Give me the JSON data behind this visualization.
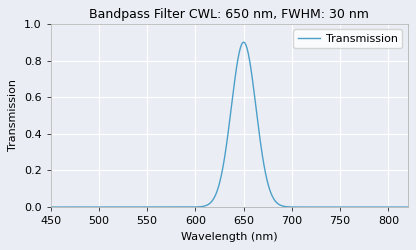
{
  "title": "Bandpass Filter CWL: 650 nm, FWHM: 30 nm",
  "xlabel": "Wavelength (nm)",
  "ylabel": "Transmission",
  "legend_label": "Transmission",
  "cwl": 650,
  "fwhm": 30,
  "peak_transmission": 0.9,
  "x_min": 450,
  "x_max": 820,
  "y_min": 0.0,
  "y_max": 1.0,
  "x_ticks": [
    450,
    500,
    550,
    600,
    650,
    700,
    750,
    800
  ],
  "y_ticks": [
    0.0,
    0.2,
    0.4,
    0.6,
    0.8,
    1.0
  ],
  "line_color": "#4C9FC8",
  "background_color": "#eaeef4",
  "axes_face_color": "#eaeef4",
  "grid_color": "#ffffff",
  "title_fontsize": 9,
  "label_fontsize": 8,
  "tick_fontsize": 8,
  "legend_fontsize": 8
}
